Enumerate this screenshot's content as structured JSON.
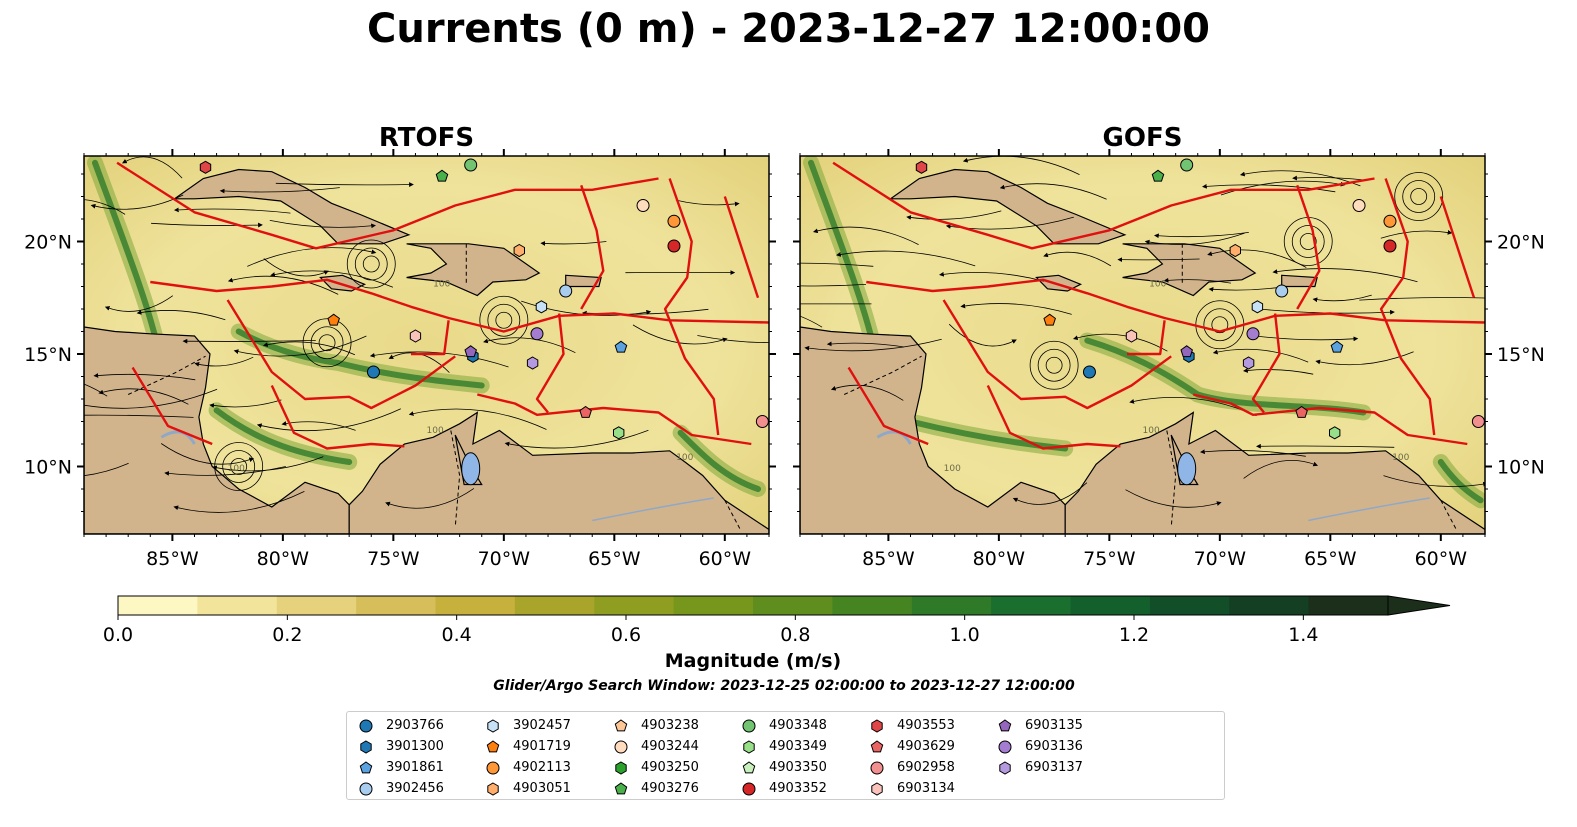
{
  "title": "Currents (0 m) - 2023-12-27 12:00:00",
  "chart_data": [
    {
      "type": "heatmap",
      "title": "RTOFS",
      "x_ticks": [
        "85°W",
        "80°W",
        "75°W",
        "70°W",
        "65°W",
        "60°W"
      ],
      "y_ticks": [
        "20°N",
        "15°N",
        "10°N"
      ],
      "xlim": [
        -89.0,
        -58.0
      ],
      "ylim": [
        7.0,
        23.8
      ],
      "contour_label": "100",
      "stations": [
        {
          "id": "2903766",
          "lon": -75.9,
          "lat": 14.2
        },
        {
          "id": "3901300",
          "lon": -71.4,
          "lat": 14.9
        },
        {
          "id": "3901861",
          "lon": -64.7,
          "lat": 15.3
        },
        {
          "id": "3902456",
          "lon": -67.2,
          "lat": 17.8
        },
        {
          "id": "3902457",
          "lon": -68.3,
          "lat": 17.1
        },
        {
          "id": "4901719",
          "lon": -77.7,
          "lat": 16.5
        },
        {
          "id": "4902113",
          "lon": -62.3,
          "lat": 20.9
        },
        {
          "id": "4903051",
          "lon": -69.3,
          "lat": 19.6
        },
        {
          "id": "4903244",
          "lon": -63.7,
          "lat": 21.6
        },
        {
          "id": "4903276",
          "lon": -72.8,
          "lat": 22.9
        },
        {
          "id": "4903348",
          "lon": -71.5,
          "lat": 23.4
        },
        {
          "id": "4903349",
          "lon": -64.8,
          "lat": 11.5
        },
        {
          "id": "4903352",
          "lon": -62.3,
          "lat": 19.8
        },
        {
          "id": "4903629",
          "lon": -66.3,
          "lat": 12.4
        },
        {
          "id": "4903553",
          "lon": -83.5,
          "lat": 23.3
        },
        {
          "id": "6902958",
          "lon": -58.3,
          "lat": 12.0
        },
        {
          "id": "6903134",
          "lon": -74.0,
          "lat": 15.8
        },
        {
          "id": "6903135",
          "lon": -71.5,
          "lat": 15.1
        },
        {
          "id": "6903136",
          "lon": -68.5,
          "lat": 15.9
        },
        {
          "id": "6903137",
          "lon": -68.7,
          "lat": 14.6
        }
      ]
    },
    {
      "type": "heatmap",
      "title": "GOFS",
      "x_ticks": [
        "85°W",
        "80°W",
        "75°W",
        "70°W",
        "65°W",
        "60°W"
      ],
      "y_ticks": [
        "20°N",
        "15°N",
        "10°N"
      ],
      "xlim": [
        -89.0,
        -58.0
      ],
      "ylim": [
        7.0,
        23.8
      ],
      "contour_label": "100",
      "stations": [
        {
          "id": "2903766",
          "lon": -75.9,
          "lat": 14.2
        },
        {
          "id": "3901300",
          "lon": -71.4,
          "lat": 14.9
        },
        {
          "id": "3901861",
          "lon": -64.7,
          "lat": 15.3
        },
        {
          "id": "3902456",
          "lon": -67.2,
          "lat": 17.8
        },
        {
          "id": "3902457",
          "lon": -68.3,
          "lat": 17.1
        },
        {
          "id": "4901719",
          "lon": -77.7,
          "lat": 16.5
        },
        {
          "id": "4902113",
          "lon": -62.3,
          "lat": 20.9
        },
        {
          "id": "4903051",
          "lon": -69.3,
          "lat": 19.6
        },
        {
          "id": "4903244",
          "lon": -63.7,
          "lat": 21.6
        },
        {
          "id": "4903276",
          "lon": -72.8,
          "lat": 22.9
        },
        {
          "id": "4903348",
          "lon": -71.5,
          "lat": 23.4
        },
        {
          "id": "4903349",
          "lon": -64.8,
          "lat": 11.5
        },
        {
          "id": "4903352",
          "lon": -62.3,
          "lat": 19.8
        },
        {
          "id": "4903629",
          "lon": -66.3,
          "lat": 12.4
        },
        {
          "id": "4903553",
          "lon": -83.5,
          "lat": 23.3
        },
        {
          "id": "6902958",
          "lon": -58.3,
          "lat": 12.0
        },
        {
          "id": "6903134",
          "lon": -74.0,
          "lat": 15.8
        },
        {
          "id": "6903135",
          "lon": -71.5,
          "lat": 15.1
        },
        {
          "id": "6903136",
          "lon": -68.5,
          "lat": 15.9
        },
        {
          "id": "6903137",
          "lon": -68.7,
          "lat": 14.6
        }
      ]
    }
  ],
  "colorbar": {
    "label": "Magnitude (m/s)",
    "min": 0.0,
    "max": 1.5,
    "extend": "max",
    "tick_labels": [
      "0.0",
      "0.2",
      "0.4",
      "0.6",
      "0.8",
      "1.0",
      "1.2",
      "1.4"
    ],
    "tick_values": [
      0.0,
      0.2,
      0.4,
      0.6,
      0.8,
      1.0,
      1.2,
      1.4
    ],
    "colors": [
      "#fdf7c3",
      "#f3e49b",
      "#e6d17d",
      "#d6bf5a",
      "#c6b13c",
      "#a9a52a",
      "#8f9e20",
      "#77961c",
      "#5f8e1e",
      "#468422",
      "#2e7a28",
      "#1a6f2e",
      "#14602c",
      "#124f28",
      "#153f22",
      "#1b2f1b"
    ]
  },
  "search_window": "Glider/Argo Search Window: 2023-12-25 02:00:00 to 2023-12-27 12:00:00",
  "legend": [
    {
      "label": "2903766",
      "marker": "circle",
      "color": "#1f77b4"
    },
    {
      "label": "3901300",
      "marker": "hexagon",
      "color": "#1f77b4"
    },
    {
      "label": "3901861",
      "marker": "pentagon",
      "color": "#5aa3e0"
    },
    {
      "label": "3902456",
      "marker": "circle",
      "color": "#a8cdee"
    },
    {
      "label": "3902457",
      "marker": "hexagon",
      "color": "#c7e2f6"
    },
    {
      "label": "4901719",
      "marker": "pentagon",
      "color": "#ff7f0e"
    },
    {
      "label": "4902113",
      "marker": "circle",
      "color": "#ff9737"
    },
    {
      "label": "4903051",
      "marker": "hexagon",
      "color": "#ffae6b"
    },
    {
      "label": "4903238",
      "marker": "pentagon",
      "color": "#ffc796"
    },
    {
      "label": "4903244",
      "marker": "circle",
      "color": "#ffdcbd"
    },
    {
      "label": "4903250",
      "marker": "hexagon",
      "color": "#2ca02c"
    },
    {
      "label": "4903276",
      "marker": "pentagon",
      "color": "#49b04a"
    },
    {
      "label": "4903348",
      "marker": "circle",
      "color": "#72c472"
    },
    {
      "label": "4903349",
      "marker": "hexagon",
      "color": "#98df8a"
    },
    {
      "label": "4903350",
      "marker": "pentagon",
      "color": "#c8f0bd"
    },
    {
      "label": "4903352",
      "marker": "circle",
      "color": "#d62728"
    },
    {
      "label": "4903553",
      "marker": "hexagon",
      "color": "#e04647"
    },
    {
      "label": "4903629",
      "marker": "pentagon",
      "color": "#ea6464"
    },
    {
      "label": "6902958",
      "marker": "circle",
      "color": "#f2908f"
    },
    {
      "label": "6903134",
      "marker": "hexagon",
      "color": "#f9c2bb"
    },
    {
      "label": "6903135",
      "marker": "pentagon",
      "color": "#9467bd"
    },
    {
      "label": "6903136",
      "marker": "circle",
      "color": "#a47dd0"
    },
    {
      "label": "6903137",
      "marker": "hexagon",
      "color": "#b69ae0"
    }
  ]
}
